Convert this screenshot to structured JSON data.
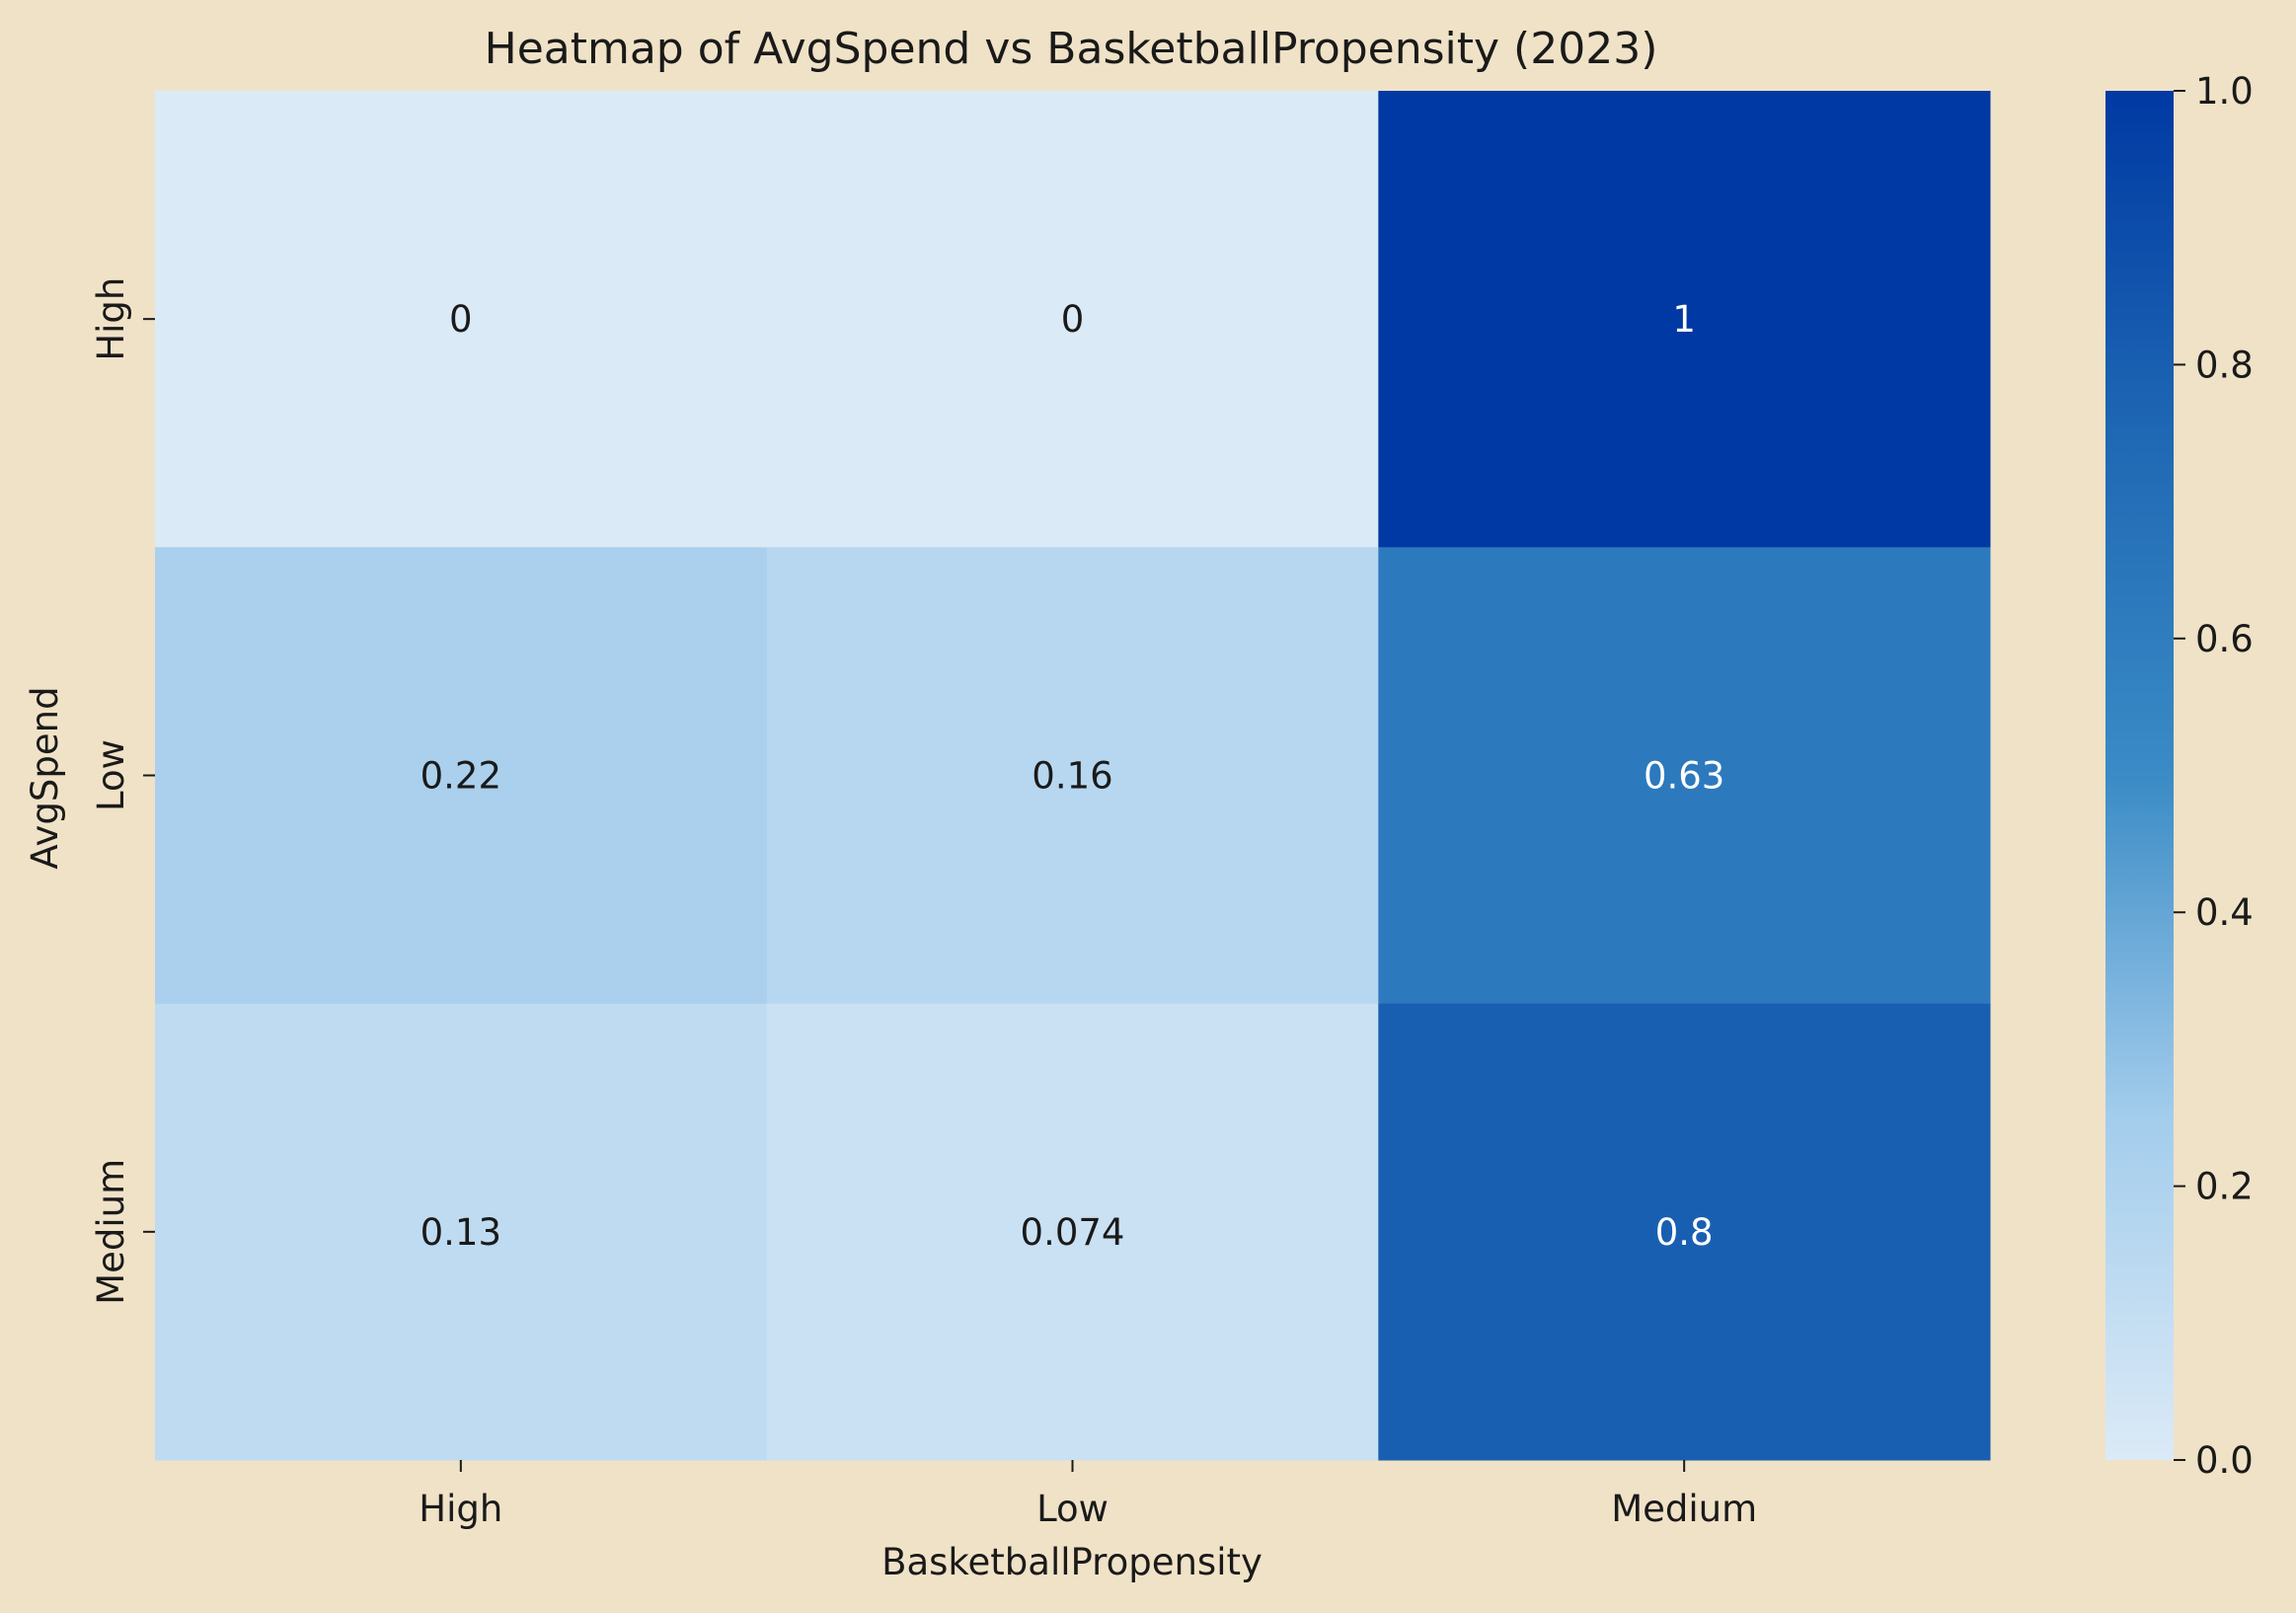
{
  "chart_data": {
    "type": "heatmap",
    "title": "Heatmap of AvgSpend vs BasketballPropensity (2023)",
    "xlabel": "BasketballPropensity",
    "ylabel": "AvgSpend",
    "x_categories": [
      "High",
      "Low",
      "Medium"
    ],
    "y_categories": [
      "High",
      "Low",
      "Medium"
    ],
    "values": [
      [
        0,
        0,
        1
      ],
      [
        0.22,
        0.16,
        0.63
      ],
      [
        0.13,
        0.074,
        0.8
      ]
    ],
    "value_labels": [
      [
        "0",
        "0",
        "1"
      ],
      [
        "0.22",
        "0.16",
        "0.63"
      ],
      [
        "0.13",
        "0.074",
        "0.8"
      ]
    ],
    "colorbar": {
      "range": [
        0,
        1
      ],
      "ticks": [
        0.0,
        0.2,
        0.4,
        0.6,
        0.8,
        1.0
      ],
      "tick_labels": [
        "0.0",
        "0.2",
        "0.4",
        "0.6",
        "0.8",
        "1.0"
      ]
    },
    "colormap": [
      "#dbeaf7",
      "#a3cdec",
      "#3a8bc6",
      "#1f68b4",
      "#0039a3"
    ],
    "grid": false,
    "legend": "colorbar-right"
  },
  "colors": {
    "background": "#f0e2c7",
    "text_dark": "#1a1a1a",
    "text_light": "#ffffff"
  }
}
